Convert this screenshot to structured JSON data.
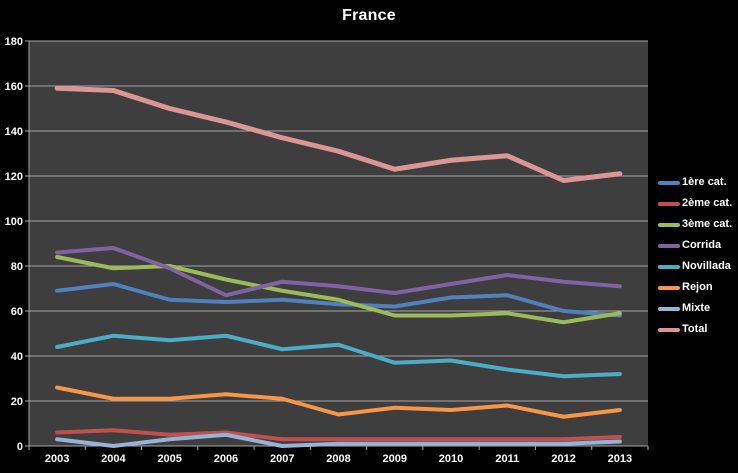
{
  "chart_data": {
    "type": "line",
    "title": "France",
    "categories": [
      "2003",
      "2004",
      "2005",
      "2006",
      "2007",
      "2008",
      "2009",
      "2010",
      "2011",
      "2012",
      "2013"
    ],
    "series": [
      {
        "key": "1ere-cat",
        "name": "1ère cat.",
        "color": "#4F81BD",
        "values": [
          69,
          72,
          65,
          64,
          65,
          63,
          62,
          66,
          67,
          60,
          58
        ]
      },
      {
        "key": "2eme-cat",
        "name": "2ème cat.",
        "color": "#C0504D",
        "values": [
          6,
          7,
          5,
          6,
          3,
          3,
          3,
          3,
          3,
          3,
          4
        ]
      },
      {
        "key": "3eme-cat",
        "name": "3ème cat.",
        "color": "#9BBB59",
        "values": [
          84,
          79,
          80,
          74,
          69,
          65,
          58,
          58,
          59,
          55,
          59
        ]
      },
      {
        "key": "corrida",
        "name": "Corrida",
        "color": "#8064A2",
        "values": [
          86,
          88,
          79,
          67,
          73,
          71,
          68,
          72,
          76,
          73,
          71
        ]
      },
      {
        "key": "novillada",
        "name": "Novillada",
        "color": "#4BACC6",
        "values": [
          44,
          49,
          47,
          49,
          43,
          45,
          37,
          38,
          34,
          31,
          32
        ]
      },
      {
        "key": "rejon",
        "name": "Rejon",
        "color": "#F79646",
        "values": [
          26,
          21,
          21,
          23,
          21,
          14,
          17,
          16,
          18,
          13,
          16
        ]
      },
      {
        "key": "mixte",
        "name": "Mixte",
        "color": "#95B3D7",
        "values": [
          3,
          0,
          3,
          5,
          0,
          1,
          1,
          1,
          1,
          1,
          2
        ]
      },
      {
        "key": "total",
        "name": "Total",
        "color": "#D99694",
        "values": [
          159,
          158,
          150,
          144,
          137,
          131,
          123,
          127,
          129,
          118,
          121
        ]
      }
    ],
    "xlabel": "",
    "ylabel": "",
    "ylim": [
      0,
      180
    ],
    "ytick_interval": 20,
    "grid": true,
    "legend_position": "right",
    "colors": {
      "background": "#000000",
      "plot_background": "#3E3E3E",
      "gridline": "#A6A6A6",
      "axis_text": "#FFFFFF",
      "title_text": "#FFFFFF"
    }
  }
}
